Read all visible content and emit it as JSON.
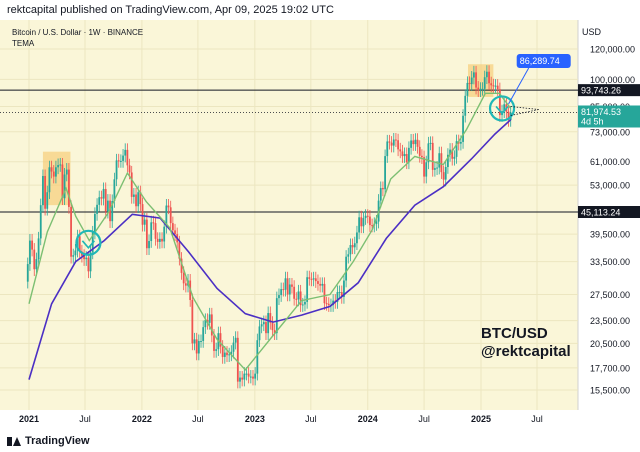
{
  "header": {
    "published": "rektcapital published on TradingView.com, Apr 09, 2025 19:02 UTC"
  },
  "footer": {
    "brand": "TradingView"
  },
  "chart_data": {
    "type": "candlestick",
    "symbol_title": "Bitcoin / U.S. Dollar · 1W · BINANCE",
    "indicator_name": "TEMA",
    "currency_label": "USD",
    "watermark": [
      "BTC/USD",
      "@rektcapital"
    ],
    "y_axis": {
      "scale": "log",
      "ticks": [
        "120,000.00",
        "100,000.00",
        "85,000.00",
        "73,000.00",
        "61,000.00",
        "53,000.00",
        "39,500.00",
        "33,500.00",
        "27,500.00",
        "23,500.00",
        "20,500.00",
        "17,700.00",
        "15,500.00"
      ],
      "tick_values": [
        120000,
        100000,
        85000,
        73000,
        61000,
        53000,
        39500,
        33500,
        27500,
        23500,
        20500,
        17700,
        15500
      ]
    },
    "x_axis": {
      "ticks": [
        "2021",
        "Jul",
        "2022",
        "Jul",
        "2023",
        "Jul",
        "2024",
        "Jul",
        "2025",
        "Jul"
      ],
      "tick_dates": [
        "2021-01-01",
        "2021-07-01",
        "2022-01-01",
        "2022-07-01",
        "2023-01-01",
        "2023-07-01",
        "2024-01-01",
        "2024-07-01",
        "2025-01-01",
        "2025-07-01"
      ]
    },
    "price_labels": [
      {
        "value": "93,743.26",
        "kind": "hline"
      },
      {
        "value": "81,974.53",
        "sub": "4d 5h",
        "kind": "last"
      },
      {
        "value": "45,113.24",
        "kind": "hline"
      },
      {
        "value": "86,289.74",
        "kind": "callout"
      }
    ],
    "horizontal_lines": [
      93743.26,
      45113.24
    ],
    "candles_weekly_close": [
      {
        "d": "2020-12-28",
        "v": 33000
      },
      {
        "d": "2021-01-04",
        "v": 38000
      },
      {
        "d": "2021-01-11",
        "v": 36000
      },
      {
        "d": "2021-01-18",
        "v": 32000
      },
      {
        "d": "2021-01-25",
        "v": 34000
      },
      {
        "d": "2021-02-01",
        "v": 38500
      },
      {
        "d": "2021-02-08",
        "v": 47000
      },
      {
        "d": "2021-02-15",
        "v": 56000
      },
      {
        "d": "2021-02-22",
        "v": 46000
      },
      {
        "d": "2021-03-01",
        "v": 50800
      },
      {
        "d": "2021-03-08",
        "v": 59000
      },
      {
        "d": "2021-03-15",
        "v": 57500
      },
      {
        "d": "2021-03-22",
        "v": 55800
      },
      {
        "d": "2021-03-29",
        "v": 59000
      },
      {
        "d": "2021-04-05",
        "v": 59800
      },
      {
        "d": "2021-04-12",
        "v": 60000
      },
      {
        "d": "2021-04-19",
        "v": 49000
      },
      {
        "d": "2021-04-26",
        "v": 56500
      },
      {
        "d": "2021-05-03",
        "v": 58200
      },
      {
        "d": "2021-05-10",
        "v": 46500
      },
      {
        "d": "2021-05-17",
        "v": 34500
      },
      {
        "d": "2021-05-24",
        "v": 34800
      },
      {
        "d": "2021-05-31",
        "v": 35800
      },
      {
        "d": "2021-06-07",
        "v": 39000
      },
      {
        "d": "2021-06-14",
        "v": 35600
      },
      {
        "d": "2021-06-21",
        "v": 34700
      },
      {
        "d": "2021-06-28",
        "v": 34000
      },
      {
        "d": "2021-07-05",
        "v": 34300
      },
      {
        "d": "2021-07-12",
        "v": 31600
      },
      {
        "d": "2021-07-19",
        "v": 35400
      },
      {
        "d": "2021-07-26",
        "v": 39900
      },
      {
        "d": "2021-08-02",
        "v": 44600
      },
      {
        "d": "2021-08-09",
        "v": 47100
      },
      {
        "d": "2021-08-16",
        "v": 49300
      },
      {
        "d": "2021-08-23",
        "v": 48900
      },
      {
        "d": "2021-08-30",
        "v": 51800
      },
      {
        "d": "2021-09-06",
        "v": 45200
      },
      {
        "d": "2021-09-13",
        "v": 48300
      },
      {
        "d": "2021-09-20",
        "v": 42700
      },
      {
        "d": "2021-09-27",
        "v": 48200
      },
      {
        "d": "2021-10-04",
        "v": 54900
      },
      {
        "d": "2021-10-11",
        "v": 61500
      },
      {
        "d": "2021-10-18",
        "v": 61300
      },
      {
        "d": "2021-10-25",
        "v": 61300
      },
      {
        "d": "2021-11-01",
        "v": 63300
      },
      {
        "d": "2021-11-08",
        "v": 65500
      },
      {
        "d": "2021-11-15",
        "v": 59700
      },
      {
        "d": "2021-11-22",
        "v": 57200
      },
      {
        "d": "2021-11-29",
        "v": 49400
      },
      {
        "d": "2021-12-06",
        "v": 50100
      },
      {
        "d": "2021-12-13",
        "v": 46700
      },
      {
        "d": "2021-12-20",
        "v": 50800
      },
      {
        "d": "2021-12-27",
        "v": 47300
      },
      {
        "d": "2022-01-03",
        "v": 41800
      },
      {
        "d": "2022-01-10",
        "v": 43100
      },
      {
        "d": "2022-01-17",
        "v": 36300
      },
      {
        "d": "2022-01-24",
        "v": 37900
      },
      {
        "d": "2022-01-31",
        "v": 42400
      },
      {
        "d": "2022-02-07",
        "v": 42200
      },
      {
        "d": "2022-02-14",
        "v": 38400
      },
      {
        "d": "2022-02-21",
        "v": 37700
      },
      {
        "d": "2022-02-28",
        "v": 38400
      },
      {
        "d": "2022-03-07",
        "v": 37800
      },
      {
        "d": "2022-03-14",
        "v": 41300
      },
      {
        "d": "2022-03-21",
        "v": 46900
      },
      {
        "d": "2022-03-28",
        "v": 46400
      },
      {
        "d": "2022-04-04",
        "v": 42200
      },
      {
        "d": "2022-04-11",
        "v": 40400
      },
      {
        "d": "2022-04-18",
        "v": 39500
      },
      {
        "d": "2022-04-25",
        "v": 37600
      },
      {
        "d": "2022-05-02",
        "v": 34100
      },
      {
        "d": "2022-05-09",
        "v": 31300
      },
      {
        "d": "2022-05-16",
        "v": 29400
      },
      {
        "d": "2022-05-23",
        "v": 29000
      },
      {
        "d": "2022-05-30",
        "v": 29900
      },
      {
        "d": "2022-06-06",
        "v": 26600
      },
      {
        "d": "2022-06-13",
        "v": 20500
      },
      {
        "d": "2022-06-20",
        "v": 21000
      },
      {
        "d": "2022-06-27",
        "v": 19300
      },
      {
        "d": "2022-07-04",
        "v": 20800
      },
      {
        "d": "2022-07-11",
        "v": 20800
      },
      {
        "d": "2022-07-18",
        "v": 22600
      },
      {
        "d": "2022-07-25",
        "v": 23600
      },
      {
        "d": "2022-08-01",
        "v": 23200
      },
      {
        "d": "2022-08-08",
        "v": 24400
      },
      {
        "d": "2022-08-15",
        "v": 21500
      },
      {
        "d": "2022-08-22",
        "v": 19600
      },
      {
        "d": "2022-08-29",
        "v": 19800
      },
      {
        "d": "2022-09-05",
        "v": 21800
      },
      {
        "d": "2022-09-12",
        "v": 20100
      },
      {
        "d": "2022-09-19",
        "v": 18900
      },
      {
        "d": "2022-09-26",
        "v": 19400
      },
      {
        "d": "2022-10-03",
        "v": 19100
      },
      {
        "d": "2022-10-10",
        "v": 19200
      },
      {
        "d": "2022-10-17",
        "v": 19500
      },
      {
        "d": "2022-10-24",
        "v": 20600
      },
      {
        "d": "2022-10-31",
        "v": 21200
      },
      {
        "d": "2022-11-07",
        "v": 16300
      },
      {
        "d": "2022-11-14",
        "v": 16700
      },
      {
        "d": "2022-11-21",
        "v": 16500
      },
      {
        "d": "2022-11-28",
        "v": 17100
      },
      {
        "d": "2022-12-05",
        "v": 17100
      },
      {
        "d": "2022-12-12",
        "v": 16800
      },
      {
        "d": "2022-12-19",
        "v": 16800
      },
      {
        "d": "2022-12-26",
        "v": 16600
      },
      {
        "d": "2023-01-02",
        "v": 17100
      },
      {
        "d": "2023-01-09",
        "v": 20900
      },
      {
        "d": "2023-01-16",
        "v": 22700
      },
      {
        "d": "2023-01-23",
        "v": 23000
      },
      {
        "d": "2023-01-30",
        "v": 23300
      },
      {
        "d": "2023-02-06",
        "v": 21800
      },
      {
        "d": "2023-02-13",
        "v": 24600
      },
      {
        "d": "2023-02-20",
        "v": 23200
      },
      {
        "d": "2023-02-27",
        "v": 22200
      },
      {
        "d": "2023-03-06",
        "v": 21800
      },
      {
        "d": "2023-03-13",
        "v": 26900
      },
      {
        "d": "2023-03-20",
        "v": 27400
      },
      {
        "d": "2023-03-27",
        "v": 28400
      },
      {
        "d": "2023-04-03",
        "v": 28300
      },
      {
        "d": "2023-04-10",
        "v": 30300
      },
      {
        "d": "2023-04-17",
        "v": 27500
      },
      {
        "d": "2023-04-24",
        "v": 29200
      },
      {
        "d": "2023-05-01",
        "v": 28800
      },
      {
        "d": "2023-05-08",
        "v": 26800
      },
      {
        "d": "2023-05-15",
        "v": 26700
      },
      {
        "d": "2023-05-22",
        "v": 28000
      },
      {
        "d": "2023-05-29",
        "v": 25800
      },
      {
        "d": "2023-06-05",
        "v": 25900
      },
      {
        "d": "2023-06-12",
        "v": 26300
      },
      {
        "d": "2023-06-19",
        "v": 30500
      },
      {
        "d": "2023-06-26",
        "v": 30200
      },
      {
        "d": "2023-07-03",
        "v": 30100
      },
      {
        "d": "2023-07-10",
        "v": 30300
      },
      {
        "d": "2023-07-17",
        "v": 29800
      },
      {
        "d": "2023-07-24",
        "v": 29300
      },
      {
        "d": "2023-07-31",
        "v": 29000
      },
      {
        "d": "2023-08-07",
        "v": 29300
      },
      {
        "d": "2023-08-14",
        "v": 26100
      },
      {
        "d": "2023-08-21",
        "v": 26000
      },
      {
        "d": "2023-08-28",
        "v": 25800
      },
      {
        "d": "2023-09-04",
        "v": 25800
      },
      {
        "d": "2023-09-11",
        "v": 26500
      },
      {
        "d": "2023-09-18",
        "v": 26300
      },
      {
        "d": "2023-09-25",
        "v": 27900
      },
      {
        "d": "2023-10-02",
        "v": 27900
      },
      {
        "d": "2023-10-09",
        "v": 27100
      },
      {
        "d": "2023-10-16",
        "v": 29900
      },
      {
        "d": "2023-10-23",
        "v": 34500
      },
      {
        "d": "2023-10-30",
        "v": 35000
      },
      {
        "d": "2023-11-06",
        "v": 37000
      },
      {
        "d": "2023-11-13",
        "v": 36500
      },
      {
        "d": "2023-11-20",
        "v": 37400
      },
      {
        "d": "2023-11-27",
        "v": 39900
      },
      {
        "d": "2023-12-04",
        "v": 43700
      },
      {
        "d": "2023-12-11",
        "v": 41400
      },
      {
        "d": "2023-12-18",
        "v": 43500
      },
      {
        "d": "2023-12-25",
        "v": 44100
      },
      {
        "d": "2024-01-01",
        "v": 43900
      },
      {
        "d": "2024-01-08",
        "v": 41700
      },
      {
        "d": "2024-01-15",
        "v": 41600
      },
      {
        "d": "2024-01-22",
        "v": 42000
      },
      {
        "d": "2024-01-29",
        "v": 42600
      },
      {
        "d": "2024-02-05",
        "v": 48300
      },
      {
        "d": "2024-02-12",
        "v": 52100
      },
      {
        "d": "2024-02-19",
        "v": 51700
      },
      {
        "d": "2024-02-26",
        "v": 63100
      },
      {
        "d": "2024-03-04",
        "v": 68900
      },
      {
        "d": "2024-03-11",
        "v": 68400
      },
      {
        "d": "2024-03-18",
        "v": 67200
      },
      {
        "d": "2024-03-25",
        "v": 69700
      },
      {
        "d": "2024-04-01",
        "v": 69400
      },
      {
        "d": "2024-04-08",
        "v": 65700
      },
      {
        "d": "2024-04-15",
        "v": 64900
      },
      {
        "d": "2024-04-22",
        "v": 63100
      },
      {
        "d": "2024-04-29",
        "v": 63900
      },
      {
        "d": "2024-05-06",
        "v": 60800
      },
      {
        "d": "2024-05-13",
        "v": 66300
      },
      {
        "d": "2024-05-20",
        "v": 69300
      },
      {
        "d": "2024-05-27",
        "v": 67800
      },
      {
        "d": "2024-06-03",
        "v": 69600
      },
      {
        "d": "2024-06-10",
        "v": 66700
      },
      {
        "d": "2024-06-17",
        "v": 63200
      },
      {
        "d": "2024-06-24",
        "v": 62700
      },
      {
        "d": "2024-07-01",
        "v": 55800
      },
      {
        "d": "2024-07-08",
        "v": 60800
      },
      {
        "d": "2024-07-15",
        "v": 68100
      },
      {
        "d": "2024-07-22",
        "v": 68300
      },
      {
        "d": "2024-07-29",
        "v": 58100
      },
      {
        "d": "2024-08-05",
        "v": 58700
      },
      {
        "d": "2024-08-12",
        "v": 58900
      },
      {
        "d": "2024-08-19",
        "v": 64200
      },
      {
        "d": "2024-08-26",
        "v": 57300
      },
      {
        "d": "2024-09-02",
        "v": 54800
      },
      {
        "d": "2024-09-09",
        "v": 59100
      },
      {
        "d": "2024-09-16",
        "v": 63600
      },
      {
        "d": "2024-09-23",
        "v": 65600
      },
      {
        "d": "2024-09-30",
        "v": 62100
      },
      {
        "d": "2024-10-07",
        "v": 62800
      },
      {
        "d": "2024-10-14",
        "v": 69000
      },
      {
        "d": "2024-10-21",
        "v": 68000
      },
      {
        "d": "2024-10-28",
        "v": 68700
      },
      {
        "d": "2024-11-04",
        "v": 80400
      },
      {
        "d": "2024-11-11",
        "v": 90600
      },
      {
        "d": "2024-11-18",
        "v": 97900
      },
      {
        "d": "2024-11-25",
        "v": 97200
      },
      {
        "d": "2024-12-02",
        "v": 101100
      },
      {
        "d": "2024-12-09",
        "v": 104300
      },
      {
        "d": "2024-12-16",
        "v": 95200
      },
      {
        "d": "2024-12-23",
        "v": 93700
      },
      {
        "d": "2024-12-30",
        "v": 94500
      },
      {
        "d": "2025-01-06",
        "v": 94500
      },
      {
        "d": "2025-01-13",
        "v": 101300
      },
      {
        "d": "2025-01-20",
        "v": 104700
      },
      {
        "d": "2025-01-27",
        "v": 97700
      },
      {
        "d": "2025-02-03",
        "v": 96500
      },
      {
        "d": "2025-02-10",
        "v": 96100
      },
      {
        "d": "2025-02-17",
        "v": 96300
      },
      {
        "d": "2025-02-24",
        "v": 94300
      },
      {
        "d": "2025-03-03",
        "v": 80700
      },
      {
        "d": "2025-03-10",
        "v": 82600
      },
      {
        "d": "2025-03-17",
        "v": 86100
      },
      {
        "d": "2025-03-24",
        "v": 82400
      },
      {
        "d": "2025-03-31",
        "v": 78400
      },
      {
        "d": "2025-04-07",
        "v": 81974
      }
    ],
    "tema_fast": [
      {
        "d": "2021-01-01",
        "v": 26000
      },
      {
        "d": "2021-03-01",
        "v": 40000
      },
      {
        "d": "2021-05-01",
        "v": 52000
      },
      {
        "d": "2021-06-01",
        "v": 44000
      },
      {
        "d": "2021-07-15",
        "v": 38000
      },
      {
        "d": "2021-09-15",
        "v": 45000
      },
      {
        "d": "2021-11-15",
        "v": 57000
      },
      {
        "d": "2022-01-15",
        "v": 48000
      },
      {
        "d": "2022-04-01",
        "v": 41000
      },
      {
        "d": "2022-06-15",
        "v": 27000
      },
      {
        "d": "2022-09-01",
        "v": 21000
      },
      {
        "d": "2022-12-01",
        "v": 17500
      },
      {
        "d": "2023-03-01",
        "v": 21500
      },
      {
        "d": "2023-06-01",
        "v": 26500
      },
      {
        "d": "2023-09-01",
        "v": 27500
      },
      {
        "d": "2023-11-15",
        "v": 33500
      },
      {
        "d": "2024-01-15",
        "v": 40500
      },
      {
        "d": "2024-03-15",
        "v": 55000
      },
      {
        "d": "2024-06-01",
        "v": 63000
      },
      {
        "d": "2024-09-01",
        "v": 60000
      },
      {
        "d": "2024-11-15",
        "v": 74000
      },
      {
        "d": "2025-01-15",
        "v": 92000
      },
      {
        "d": "2025-03-01",
        "v": 92000
      },
      {
        "d": "2025-04-07",
        "v": 84000
      }
    ],
    "tema_slow": [
      {
        "d": "2021-01-01",
        "v": 16500
      },
      {
        "d": "2021-03-15",
        "v": 26000
      },
      {
        "d": "2021-06-01",
        "v": 33500
      },
      {
        "d": "2021-09-01",
        "v": 38000
      },
      {
        "d": "2021-12-01",
        "v": 44500
      },
      {
        "d": "2022-03-01",
        "v": 43500
      },
      {
        "d": "2022-06-01",
        "v": 35500
      },
      {
        "d": "2022-09-01",
        "v": 28500
      },
      {
        "d": "2022-12-01",
        "v": 24500
      },
      {
        "d": "2023-03-01",
        "v": 23300
      },
      {
        "d": "2023-06-01",
        "v": 24300
      },
      {
        "d": "2023-09-01",
        "v": 25600
      },
      {
        "d": "2023-12-01",
        "v": 29500
      },
      {
        "d": "2024-03-01",
        "v": 38500
      },
      {
        "d": "2024-06-01",
        "v": 47000
      },
      {
        "d": "2024-09-01",
        "v": 52500
      },
      {
        "d": "2024-12-01",
        "v": 62000
      },
      {
        "d": "2025-02-15",
        "v": 72000
      },
      {
        "d": "2025-04-07",
        "v": 78500
      }
    ],
    "highlight_boxes": [
      {
        "from": "2021-02-15",
        "to": "2021-05-15",
        "low": 47000,
        "high": 64800
      },
      {
        "from": "2024-11-20",
        "to": "2025-02-10",
        "low": 90000,
        "high": 109500
      }
    ],
    "circles": [
      {
        "date": "2021-07-12",
        "value": 37500
      },
      {
        "date": "2025-03-10",
        "value": 84000
      }
    ]
  }
}
